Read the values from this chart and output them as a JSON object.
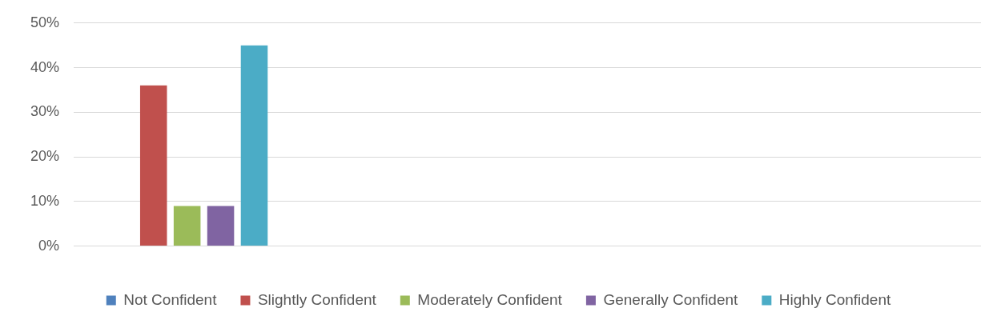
{
  "chart_data": {
    "type": "bar",
    "categories": [
      null,
      null,
      null,
      null
    ],
    "series": [
      {
        "name": "Not Confident",
        "color": "#4f81bd",
        "values": [
          0,
          null,
          null,
          null
        ]
      },
      {
        "name": "Slightly Confident",
        "color": "#c0504d",
        "values": [
          36,
          null,
          null,
          null
        ]
      },
      {
        "name": "Moderately Confident",
        "color": "#9bbb59",
        "values": [
          9,
          null,
          null,
          null
        ]
      },
      {
        "name": "Generally Confident",
        "color": "#8064a2",
        "values": [
          9,
          null,
          null,
          null
        ]
      },
      {
        "name": "Highly Confident",
        "color": "#4bacc6",
        "values": [
          45,
          null,
          null,
          null
        ]
      }
    ],
    "ylim": [
      0,
      50
    ],
    "yticks": [
      {
        "value": 0,
        "label": "0%"
      },
      {
        "value": 10,
        "label": "10%"
      },
      {
        "value": 20,
        "label": "20%"
      },
      {
        "value": 30,
        "label": "30%"
      },
      {
        "value": 40,
        "label": "40%"
      },
      {
        "value": 50,
        "label": "50%"
      }
    ],
    "grid": "y",
    "legend": "bottom"
  }
}
